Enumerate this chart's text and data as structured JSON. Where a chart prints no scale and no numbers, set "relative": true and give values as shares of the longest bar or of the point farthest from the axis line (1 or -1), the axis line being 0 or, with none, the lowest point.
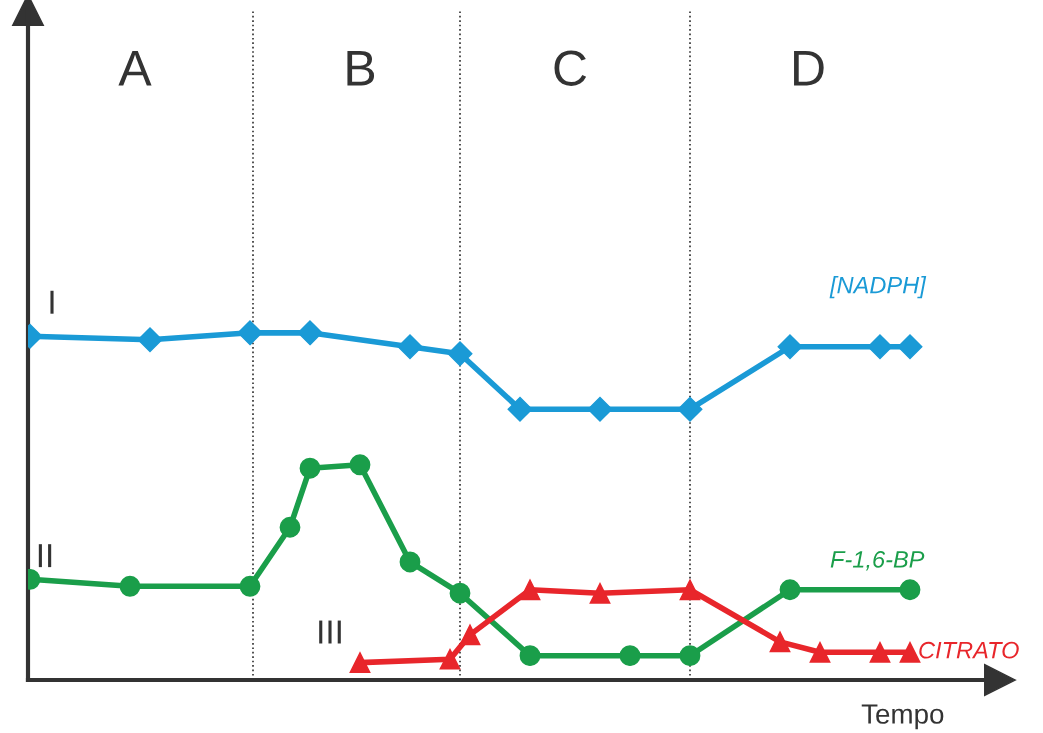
{
  "chart_data": {
    "type": "line",
    "relative": true,
    "xlabel": "Tempo",
    "legend": false,
    "line_style": "solid",
    "tick_labels": false,
    "categories": [
      null,
      null,
      null,
      null,
      null,
      null,
      null,
      null,
      null,
      null,
      null,
      null,
      null,
      null,
      null,
      null,
      null,
      null,
      null,
      null,
      null,
      null,
      null,
      null,
      null,
      null,
      null,
      null,
      null,
      null,
      null,
      null,
      null,
      null,
      null,
      null,
      null,
      null,
      null,
      null,
      null,
      null,
      null,
      null,
      null,
      null,
      null,
      null,
      null,
      null,
      null,
      null,
      null,
      null,
      null,
      null,
      null,
      null,
      null,
      null,
      null,
      null,
      null,
      null,
      null,
      null,
      null,
      null,
      null,
      null,
      null,
      null,
      null,
      null,
      null,
      null,
      null,
      null,
      null,
      null,
      null,
      null,
      null,
      null,
      null,
      null,
      null,
      null,
      null
    ],
    "series": [
      {
        "name": "[NADPH]",
        "color": "#1a9ad6",
        "marker": "diamond",
        "values": [
          0.99,
          null,
          null,
          null,
          null,
          null,
          null,
          null,
          null,
          null,
          null,
          null,
          0.98,
          null,
          null,
          null,
          null,
          null,
          null,
          null,
          null,
          null,
          1.0,
          null,
          null,
          null,
          null,
          null,
          1.0,
          null,
          null,
          null,
          null,
          null,
          null,
          null,
          null,
          null,
          0.96,
          null,
          null,
          null,
          null,
          0.94,
          null,
          null,
          null,
          null,
          null,
          0.78,
          null,
          null,
          null,
          null,
          null,
          null,
          null,
          0.78,
          null,
          null,
          null,
          null,
          null,
          null,
          null,
          null,
          0.78,
          null,
          null,
          null,
          null,
          null,
          null,
          null,
          null,
          null,
          0.96,
          null,
          null,
          null,
          null,
          null,
          null,
          null,
          null,
          0.96,
          null,
          null,
          0.96
        ]
      },
      {
        "name": "F-1,6-BP",
        "color": "#1a9e4a",
        "marker": "circle",
        "values": [
          0.29,
          null,
          null,
          null,
          null,
          null,
          null,
          null,
          null,
          null,
          0.27,
          null,
          null,
          null,
          null,
          null,
          null,
          null,
          null,
          null,
          null,
          null,
          0.27,
          null,
          null,
          null,
          0.44,
          null,
          0.61,
          null,
          null,
          null,
          null,
          0.62,
          null,
          null,
          null,
          null,
          0.34,
          null,
          null,
          null,
          null,
          0.25,
          null,
          null,
          null,
          null,
          null,
          null,
          0.07,
          null,
          null,
          null,
          null,
          null,
          null,
          null,
          null,
          null,
          0.07,
          null,
          null,
          null,
          null,
          null,
          0.07,
          null,
          null,
          null,
          null,
          null,
          null,
          null,
          null,
          null,
          0.26,
          null,
          null,
          null,
          null,
          null,
          null,
          null,
          null,
          null,
          null,
          null,
          0.26
        ]
      },
      {
        "name": "CITRATO",
        "color": "#e8262b",
        "marker": "triangle",
        "values": [
          null,
          null,
          null,
          null,
          null,
          null,
          null,
          null,
          null,
          null,
          null,
          null,
          null,
          null,
          null,
          null,
          null,
          null,
          null,
          null,
          null,
          null,
          null,
          null,
          null,
          null,
          null,
          null,
          null,
          null,
          null,
          null,
          null,
          0.05,
          null,
          null,
          null,
          null,
          null,
          null,
          null,
          null,
          0.06,
          null,
          0.13,
          null,
          null,
          null,
          null,
          null,
          0.26,
          null,
          null,
          null,
          null,
          null,
          null,
          0.25,
          null,
          null,
          null,
          null,
          null,
          null,
          null,
          null,
          0.26,
          null,
          null,
          null,
          null,
          null,
          null,
          null,
          null,
          0.11,
          null,
          null,
          null,
          0.08,
          null,
          null,
          null,
          null,
          null,
          0.08,
          null,
          null,
          0.08
        ]
      }
    ],
    "annotations": [
      "A",
      "B",
      "C",
      "D",
      "I",
      "II",
      "III"
    ]
  }
}
